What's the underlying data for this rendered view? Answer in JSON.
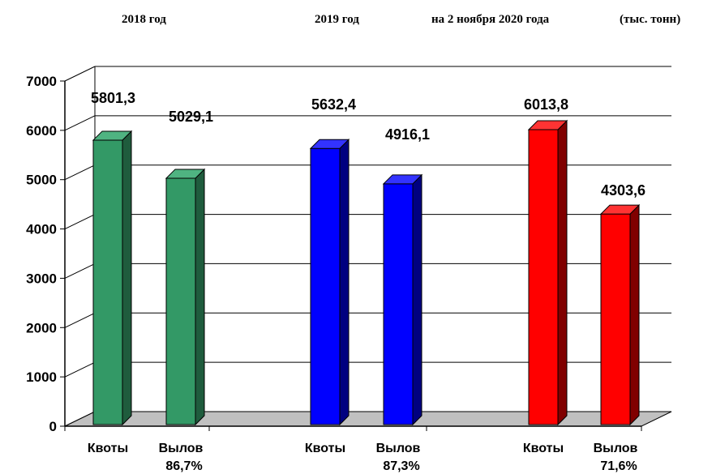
{
  "header": {
    "period_1": "2018  год",
    "period_2": "2019  год",
    "period_3": "на 2 ноября 2020 года",
    "unit": "(тыс. тонн)"
  },
  "chart_data": {
    "type": "bar",
    "title": "",
    "xlabel": "",
    "ylabel": "",
    "ylim": [
      0,
      7000
    ],
    "yticks": [
      "0",
      "1000",
      "2000",
      "3000",
      "4000",
      "5000",
      "6000",
      "7000"
    ],
    "grid": true,
    "groups": [
      {
        "name": "2018  год",
        "bars": [
          {
            "label": "Квоты",
            "sublabel": "",
            "value": 5801.3,
            "value_label": "5801,3",
            "color": "#339966",
            "side": "#1f5c3d",
            "top": "#4fb381"
          },
          {
            "label": "Вылов",
            "sublabel": "86,7%",
            "value": 5029.1,
            "value_label": "5029,1",
            "color": "#339966",
            "side": "#1f5c3d",
            "top": "#4fb381"
          }
        ]
      },
      {
        "name": "2019  год",
        "bars": [
          {
            "label": "Квоты",
            "sublabel": "",
            "value": 5632.4,
            "value_label": "5632,4",
            "color": "#0000ff",
            "side": "#000080",
            "top": "#3333ff"
          },
          {
            "label": "Вылов",
            "sublabel": "87,3%",
            "value": 4916.1,
            "value_label": "4916,1",
            "color": "#0000ff",
            "side": "#000080",
            "top": "#3333ff"
          }
        ]
      },
      {
        "name": "на 2 ноября 2020 года",
        "bars": [
          {
            "label": "Квоты",
            "sublabel": "",
            "value": 6013.8,
            "value_label": "6013,8",
            "color": "#ff0000",
            "side": "#800000",
            "top": "#ff3333"
          },
          {
            "label": "Вылов",
            "sublabel": "71,6%",
            "value": 4303.6,
            "value_label": "4303,6",
            "color": "#ff0000",
            "side": "#800000",
            "top": "#ff3333"
          }
        ]
      }
    ]
  }
}
